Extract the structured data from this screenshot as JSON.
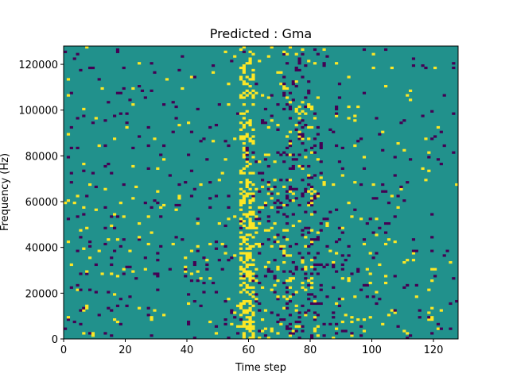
{
  "chart_data": {
    "type": "heatmap",
    "title": "Predicted : Gma",
    "xlabel": "Time step",
    "ylabel": "Frequency (Hz)",
    "xlim": [
      0,
      128
    ],
    "ylim": [
      0,
      128000
    ],
    "xticks": [
      0,
      20,
      40,
      60,
      80,
      100,
      120
    ],
    "xtick_labels": [
      "0",
      "20",
      "40",
      "60",
      "80",
      "100",
      "120"
    ],
    "yticks": [
      0,
      20000,
      40000,
      60000,
      80000,
      100000,
      120000
    ],
    "ytick_labels": [
      "0",
      "20000",
      "40000",
      "60000",
      "80000",
      "100000",
      "120000"
    ],
    "colormap": "viridis",
    "value_levels": [
      -1,
      0,
      1
    ],
    "colors": {
      "low": "#440154",
      "mid": "#21918c",
      "high": "#fde725"
    },
    "background_value": 0,
    "grid": false,
    "legend": "none",
    "seed": 7
  }
}
